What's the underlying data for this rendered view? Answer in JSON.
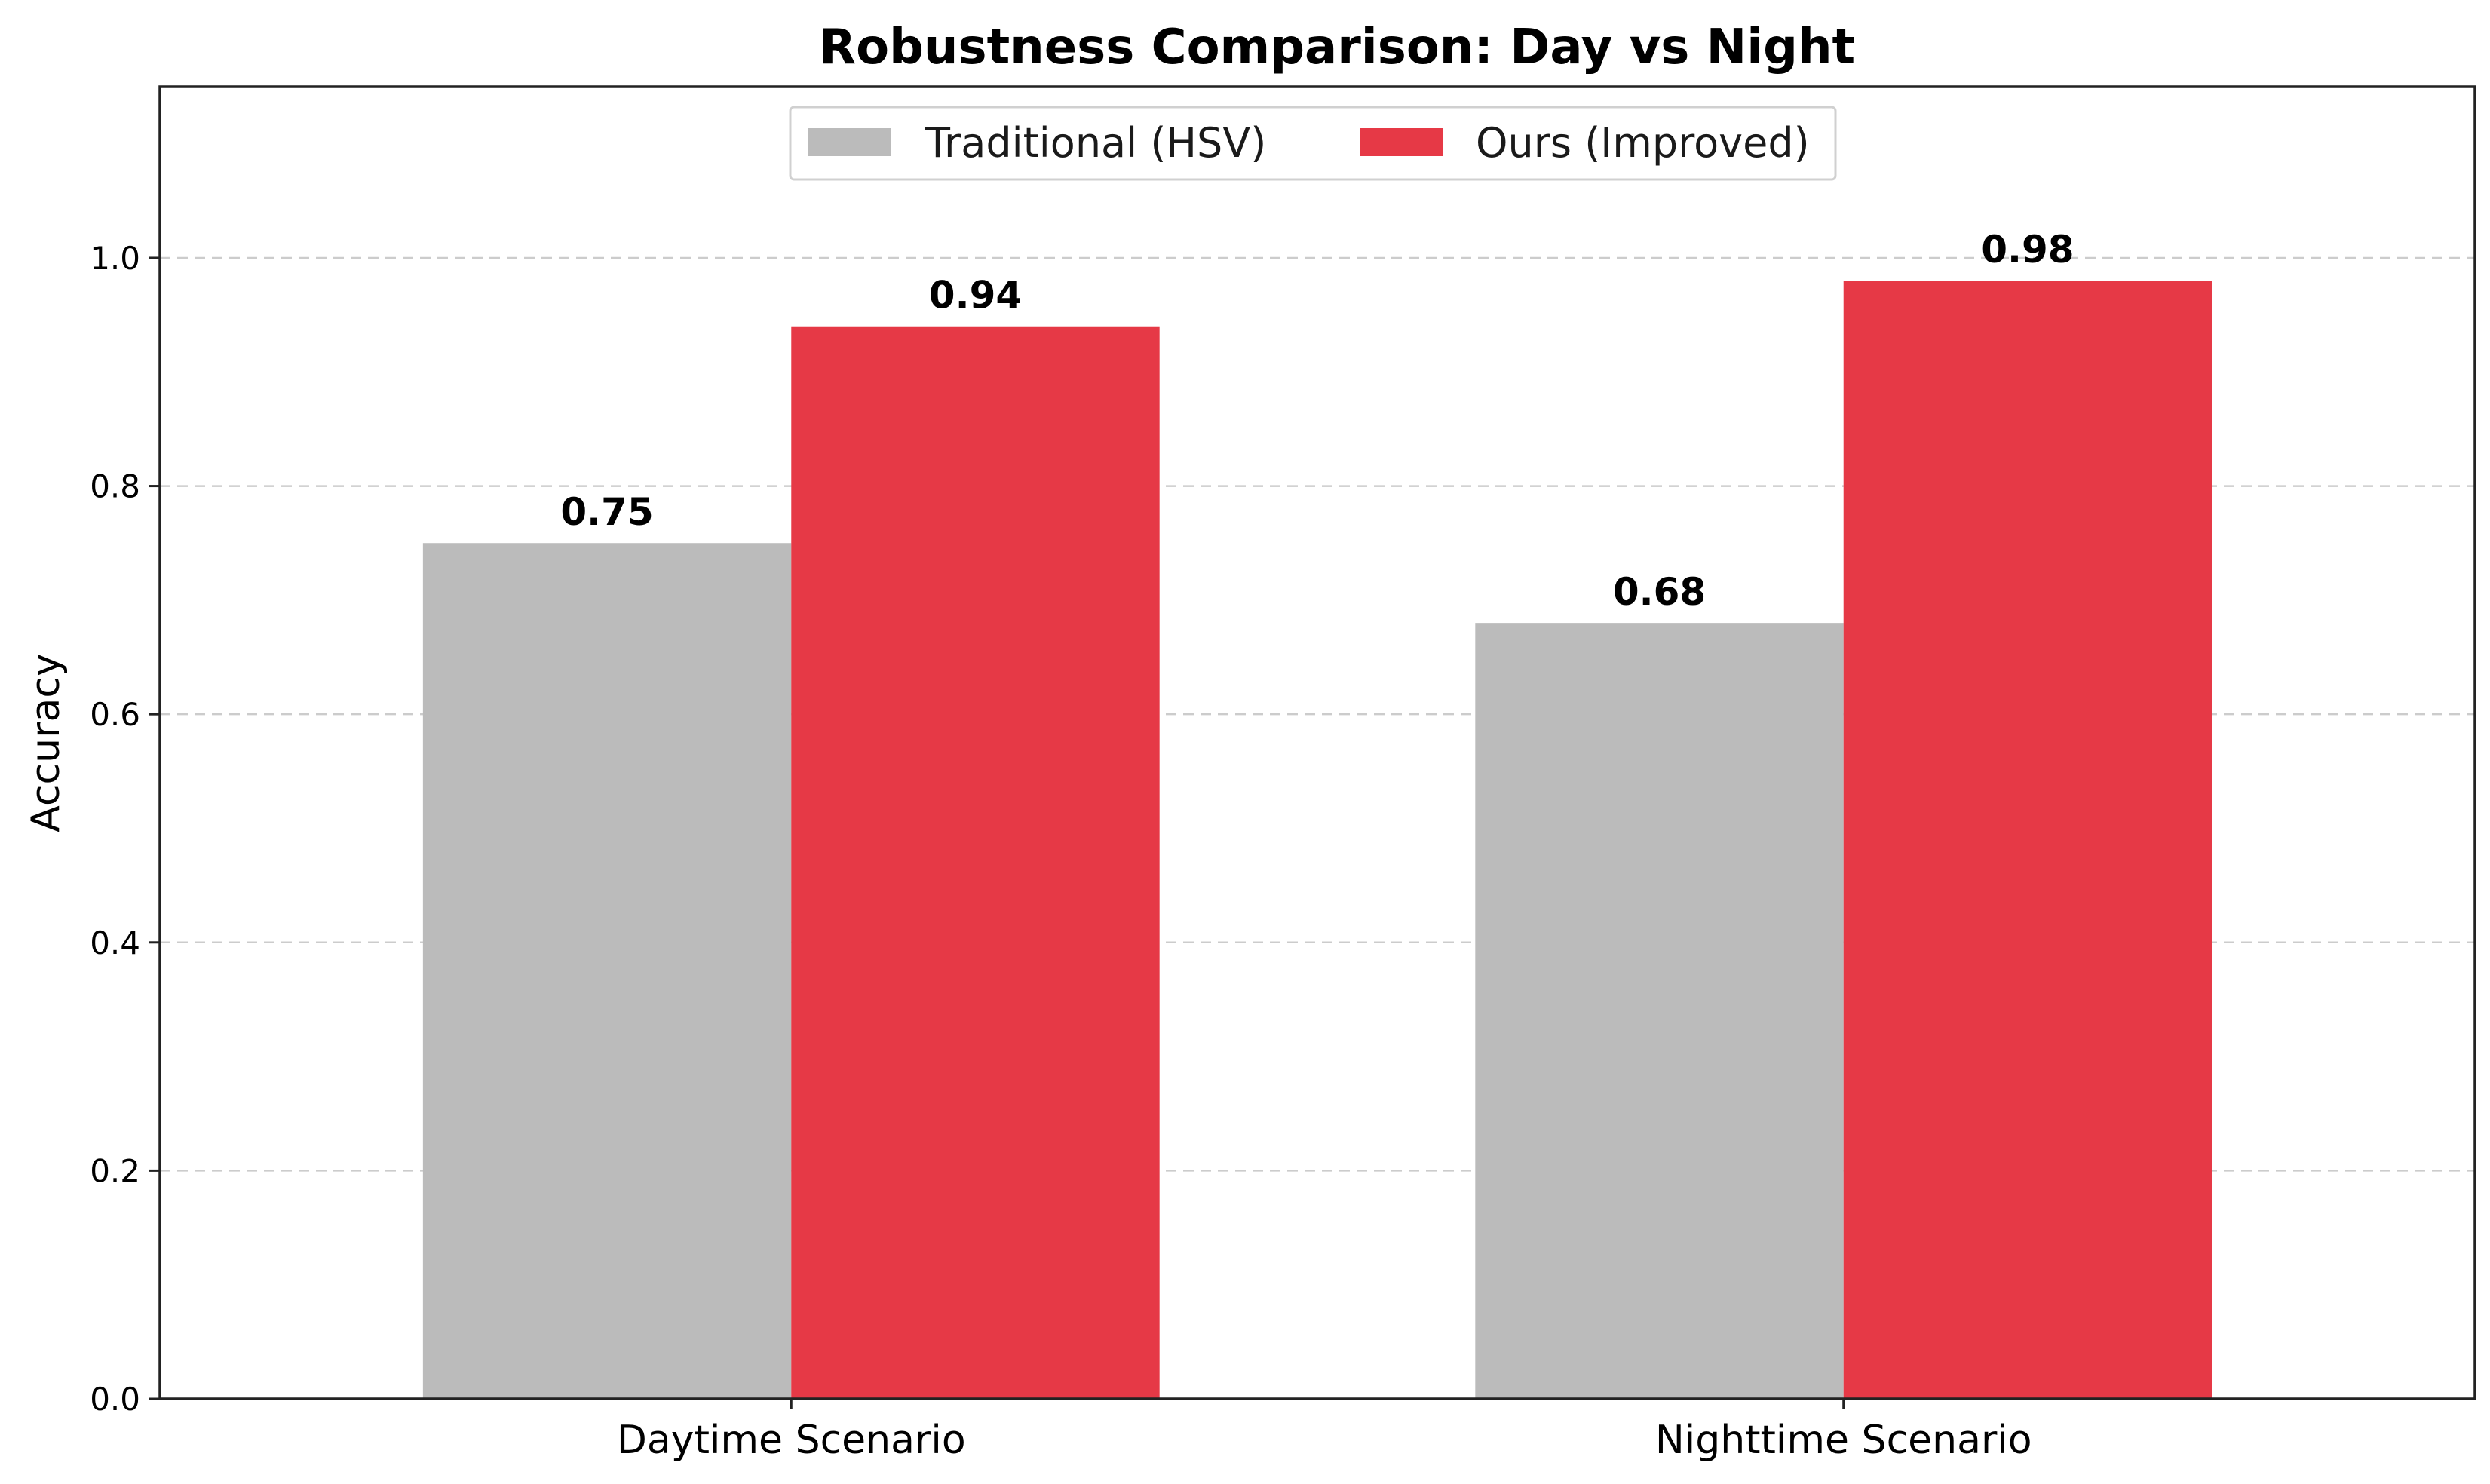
{
  "chart_data": {
    "type": "bar",
    "title": "Robustness Comparison: Day vs Night",
    "xlabel": "",
    "ylabel": "Accuracy",
    "categories": [
      "Daytime Scenario",
      "Nighttime Scenario"
    ],
    "series": [
      {
        "name": "Traditional (HSV)",
        "values": [
          0.75,
          0.68
        ],
        "value_labels": [
          "0.75",
          "0.68"
        ],
        "color": "#bbbbbb"
      },
      {
        "name": "Ours (Improved)",
        "values": [
          0.94,
          0.98
        ],
        "value_labels": [
          "0.94",
          "0.98"
        ],
        "color": "#e63946"
      }
    ],
    "ylim": [
      0,
      1.15
    ],
    "yticks": [
      0.0,
      0.2,
      0.4,
      0.6,
      0.8,
      1.0
    ],
    "ytick_labels": [
      "0.0",
      "0.2",
      "0.4",
      "0.6",
      "0.8",
      "1.0"
    ],
    "grid": "y dashed",
    "legend_position": "top-center"
  }
}
